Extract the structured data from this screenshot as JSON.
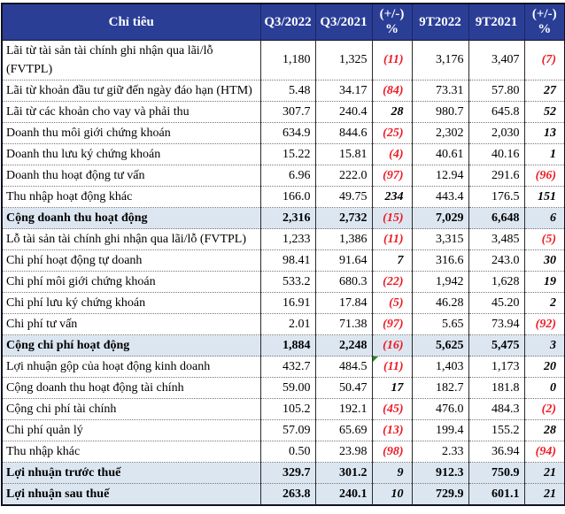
{
  "colors": {
    "header_bg": "#2B3E96",
    "header_text": "#FFFFFF",
    "subtotal_bg": "#DCE6F1",
    "negative": "#ED1C24",
    "flag_green": "#218A21"
  },
  "table": {
    "header": {
      "criteria": "Chỉ tiêu",
      "cols": [
        {
          "id": "q3-2022",
          "label": "Q3/2022"
        },
        {
          "id": "q3-2021",
          "label": "Q3/2021"
        },
        {
          "id": "pct-quarter",
          "label": "(+/-)",
          "label2": "%"
        },
        {
          "id": "9t-2022",
          "label": "9T2022"
        },
        {
          "id": "9t-2021",
          "label": "9T2021"
        },
        {
          "id": "pct-9t",
          "label": "(+/-)",
          "label2": "%"
        }
      ]
    },
    "rows": [
      {
        "label": "Lãi từ tài sản tài chính ghi nhận qua lãi/lỗ (FVTPL)",
        "values": [
          "1,180",
          "1,325",
          "(11)",
          "3,176",
          "3,407",
          "(7)"
        ]
      },
      {
        "label": "Lãi từ khoản đầu tư giữ đến ngày đáo hạn (HTM)",
        "values": [
          "5.48",
          "34.17",
          "(84)",
          "73.31",
          "57.80",
          "27"
        ]
      },
      {
        "label": "Lãi từ các khoản cho vay và phải thu",
        "values": [
          "307.7",
          "240.4",
          "28",
          "980.7",
          "645.8",
          "52"
        ]
      },
      {
        "label": "Doanh thu môi giới chứng khoán",
        "values": [
          "634.9",
          "844.6",
          "(25)",
          "2,302",
          "2,030",
          "13"
        ]
      },
      {
        "label": "Doanh thu lưu ký chứng khoán",
        "values": [
          "15.22",
          "15.81",
          "(4)",
          "40.61",
          "40.16",
          "1"
        ]
      },
      {
        "label": "Doanh thu hoạt động tư vấn",
        "values": [
          "6.96",
          "222.0",
          "(97)",
          "12.94",
          "291.6",
          "(96)"
        ]
      },
      {
        "label": "Thu nhập hoạt động khác",
        "values": [
          "166.0",
          "49.75",
          "234",
          "443.4",
          "176.5",
          "151"
        ]
      },
      {
        "label": "Cộng doanh thu hoạt động",
        "bold": true,
        "values": [
          "2,316",
          "2,732",
          "(15)",
          "7,029",
          "6,648",
          "6"
        ]
      },
      {
        "label": "Lỗ tài sản tài chính ghi nhận qua lãi/lỗ (FVTPL)",
        "values": [
          "1,233",
          "1,386",
          "(11)",
          "3,315",
          "3,485",
          "(5)"
        ]
      },
      {
        "label": "Chi phí hoạt động tự doanh",
        "values": [
          "98.41",
          "91.64",
          "7",
          "316.6",
          "243.0",
          "30"
        ]
      },
      {
        "label": "Chi phí môi giới chứng khoán",
        "values": [
          "533.2",
          "680.3",
          "(22)",
          "1,942",
          "1,628",
          "19"
        ]
      },
      {
        "label": "Chi phí lưu ký chứng khoán",
        "values": [
          "16.91",
          "17.84",
          "(5)",
          "46.28",
          "45.20",
          "2"
        ]
      },
      {
        "label": "Chi phí tư vấn",
        "values": [
          "2.01",
          "71.38",
          "(97)",
          "5.65",
          "73.94",
          "(92)"
        ]
      },
      {
        "label": "Cộng chi phí hoạt động",
        "bold": true,
        "values": [
          "1,884",
          "2,248",
          "(16)",
          "5,625",
          "5,475",
          "3"
        ]
      },
      {
        "label": "Lợi nhuận gộp của hoạt động kinh doanh",
        "values": [
          "432.7",
          "484.5",
          "(11)",
          "1,403",
          "1,173",
          "20"
        ],
        "flag": 2
      },
      {
        "label": "Cộng doanh thu hoạt động tài chính",
        "values": [
          "59.00",
          "50.47",
          "17",
          "182.7",
          "181.8",
          "0"
        ]
      },
      {
        "label": "Cộng chi phí tài chính",
        "values": [
          "105.2",
          "192.1",
          "(45)",
          "476.0",
          "484.3",
          "(2)"
        ]
      },
      {
        "label": "Chi phí quản lý",
        "values": [
          "57.09",
          "65.69",
          "(13)",
          "199.4",
          "155.2",
          "28"
        ]
      },
      {
        "label": "Thu nhập khác",
        "values": [
          "0.50",
          "23.98",
          "(98)",
          "2.33",
          "36.94",
          "(94)"
        ]
      },
      {
        "label": "Lợi nhuận trước thuế",
        "bold": true,
        "values": [
          "329.7",
          "301.2",
          "9",
          "912.3",
          "750.9",
          "21"
        ]
      },
      {
        "label": "Lợi nhuận sau thuế",
        "bold": true,
        "values": [
          "263.8",
          "240.1",
          "10",
          "729.9",
          "601.1",
          "21"
        ]
      }
    ]
  }
}
